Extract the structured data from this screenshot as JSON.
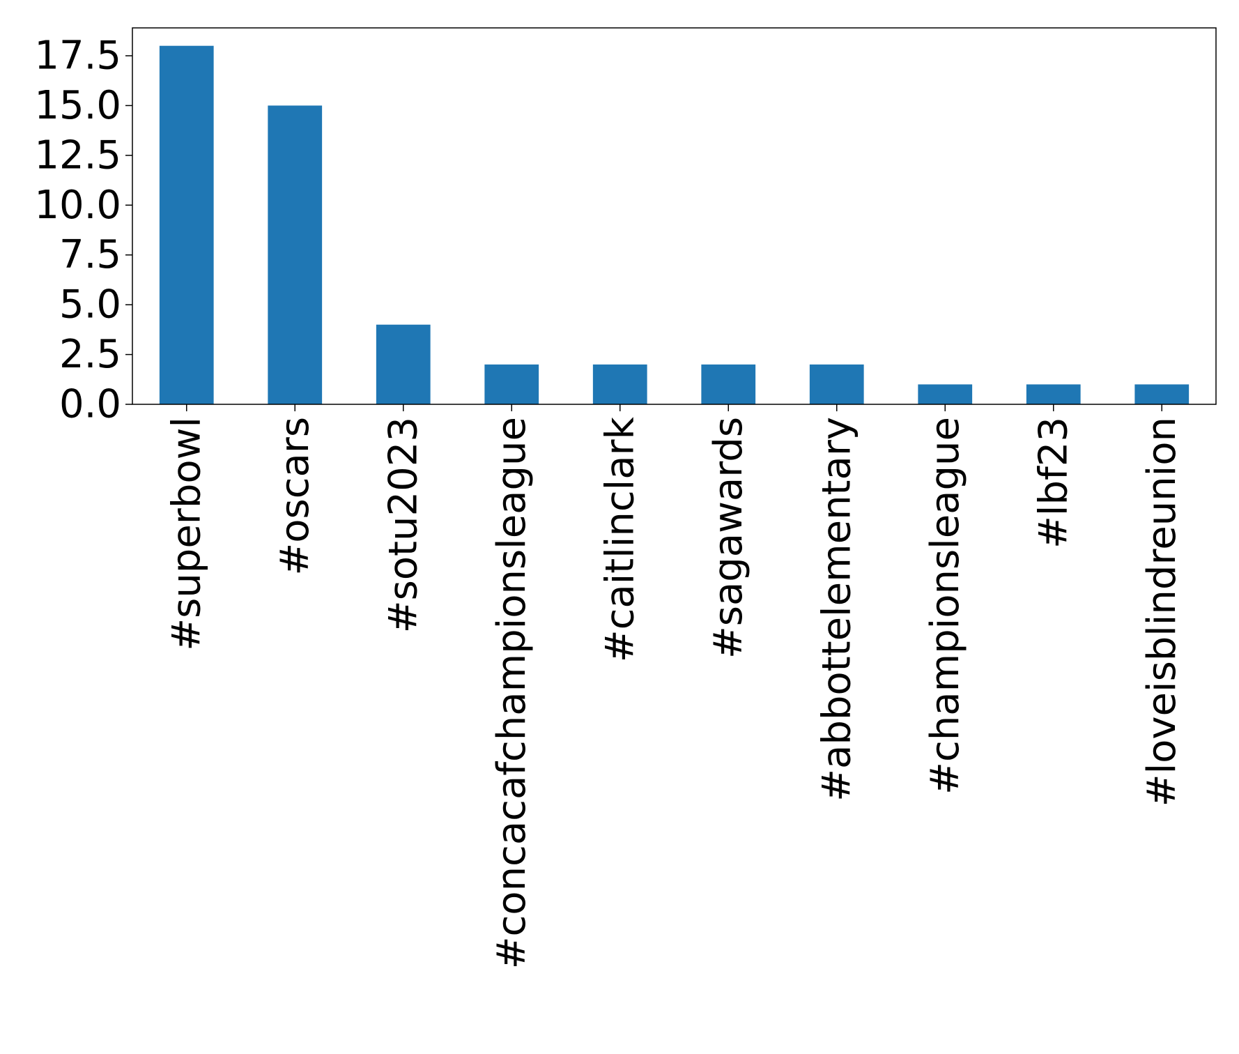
{
  "chart_data": {
    "type": "bar",
    "title": "",
    "xlabel": "",
    "ylabel": "",
    "categories": [
      "#superbowl",
      "#oscars",
      "#sotu2023",
      "#concacafchampionsleague",
      "#caitlinclark",
      "#sagawards",
      "#abbottelementary",
      "#championsleague",
      "#lbf23",
      "#loveisblindreunion"
    ],
    "values": [
      18,
      15,
      4,
      2,
      2,
      2,
      2,
      1,
      1,
      1
    ],
    "ylim": [
      0,
      18.9
    ],
    "yticks": [
      "0.0",
      "2.5",
      "5.0",
      "7.5",
      "10.0",
      "12.5",
      "15.0",
      "17.5"
    ],
    "grid": false,
    "legend": "none",
    "bar_color": "#1f77b4"
  }
}
